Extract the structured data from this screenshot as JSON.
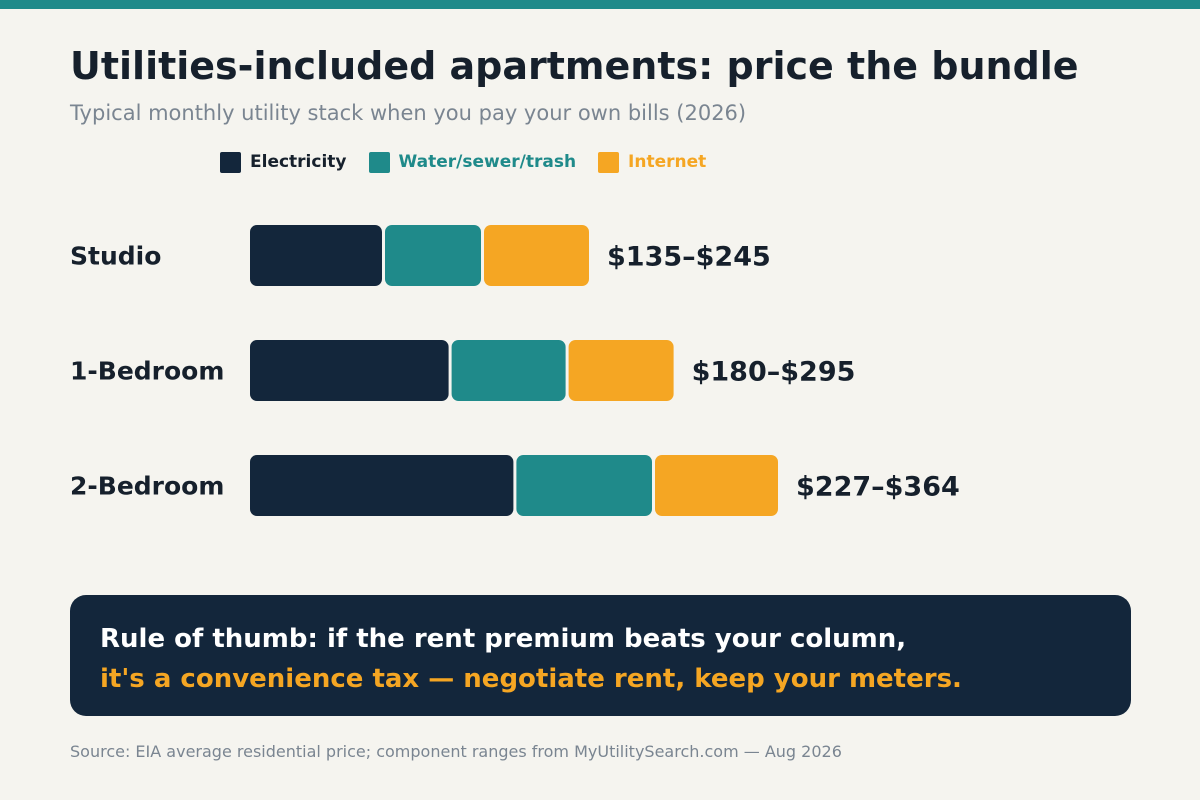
{
  "header": {
    "title": "Utilities-included apartments: price the bundle",
    "subtitle": "Typical monthly utility stack when you pay your own bills (2026)"
  },
  "colors": {
    "accent_bar": "#1f8a8a",
    "electricity": "#13263b",
    "water": "#1f8a8a",
    "internet": "#f5a623",
    "text_dark": "#16202c",
    "text_muted": "#7a8591"
  },
  "legend": [
    {
      "label": "Electricity",
      "color": "#13263b",
      "label_color": "#16202c"
    },
    {
      "label": "Water/sewer/trash",
      "color": "#1f8a8a",
      "label_color": "#1f8a8a"
    },
    {
      "label": "Internet",
      "color": "#f5a623",
      "label_color": "#f5a623"
    }
  ],
  "chart_data": {
    "type": "bar",
    "orientation": "horizontal",
    "stacked": true,
    "categories": [
      "Studio",
      "1-Bedroom",
      "2-Bedroom"
    ],
    "series": [
      {
        "name": "Electricity",
        "values": [
          75,
          112,
          148
        ]
      },
      {
        "name": "Water/sewer/trash",
        "values": [
          55,
          65,
          77
        ]
      },
      {
        "name": "Internet",
        "values": [
          60,
          60,
          70
        ]
      }
    ],
    "range_labels": [
      "$135–$245",
      "$180–$295",
      "$227–$364"
    ],
    "xlim": [
      0,
      295
    ],
    "grid": false,
    "legend_position": "top"
  },
  "callout": {
    "line1": "Rule of thumb: if the rent premium beats your column,",
    "line2": "it's a convenience tax — negotiate rent, keep your meters."
  },
  "footer": {
    "source": "Source: EIA average residential price; component ranges from MyUtilitySearch.com — Aug 2026"
  }
}
